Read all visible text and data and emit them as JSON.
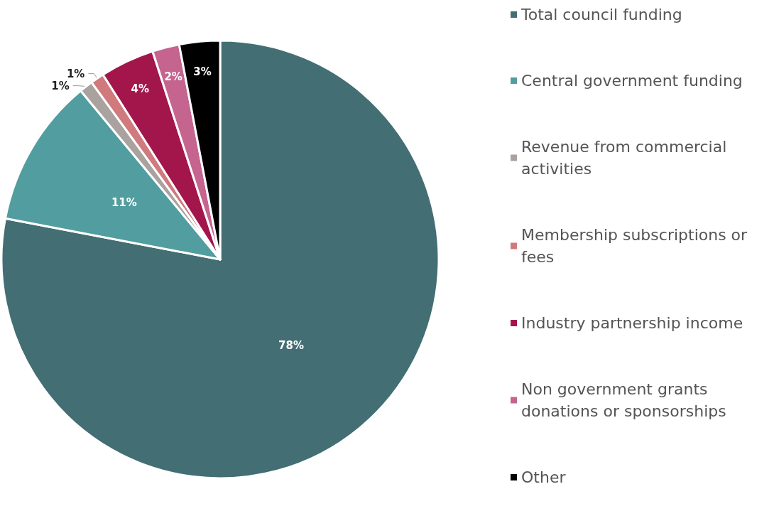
{
  "chart_data": {
    "type": "pie",
    "categories": [
      "Total council funding",
      "Central government funding",
      "Revenue from commercial activities",
      "Membership subscriptions or fees",
      "Industry partnership income",
      "Non government grants donations or sponsorships",
      "Other"
    ],
    "values": [
      78,
      11,
      1,
      1,
      4,
      2,
      3
    ],
    "colors": [
      "#436e73",
      "#529d9f",
      "#a9a29f",
      "#d07a7d",
      "#a3164c",
      "#c4648f",
      "#000000"
    ],
    "value_labels": [
      "78%",
      "11%",
      "1%",
      "1%",
      "4%",
      "2%",
      "3%"
    ],
    "legend": "right"
  }
}
